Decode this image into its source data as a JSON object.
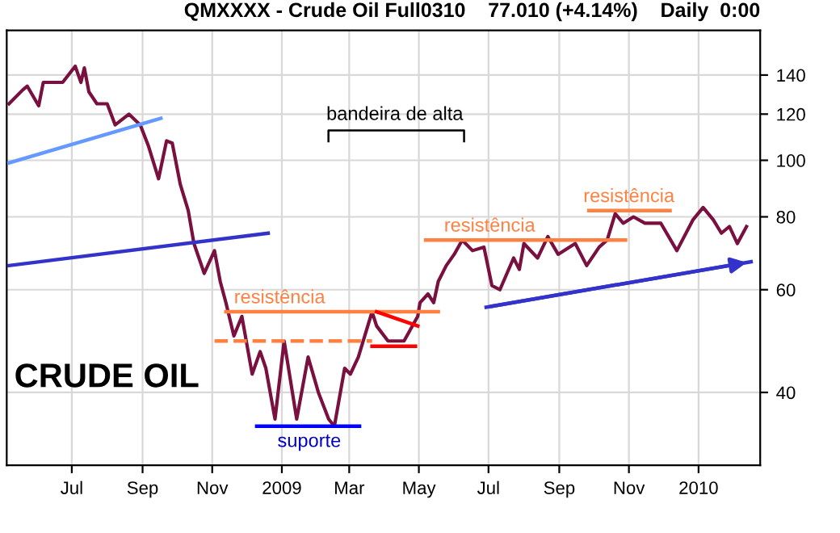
{
  "chart_data": {
    "type": "line",
    "title": "QMXXXX - Crude Oil Full0310    77.010 (+4.14%)    Daily  0:00",
    "xlim": [
      "2008-05-05",
      "2010-02-24"
    ],
    "ylim": [
      30,
      167
    ],
    "log": true,
    "xticks": [
      {
        "value": "2008-07-01",
        "label": "Jul"
      },
      {
        "value": "2008-09-01",
        "label": "Sep"
      },
      {
        "value": "2008-11-01",
        "label": "Nov"
      },
      {
        "value": "2009-01-01",
        "label": "2009"
      },
      {
        "value": "2009-03-01",
        "label": "Mar"
      },
      {
        "value": "2009-05-01",
        "label": "May"
      },
      {
        "value": "2009-07-01",
        "label": "Jul"
      },
      {
        "value": "2009-09-01",
        "label": "Sep"
      },
      {
        "value": "2009-11-01",
        "label": "Nov"
      },
      {
        "value": "2010-01-01",
        "label": "2010"
      }
    ],
    "yticks": [
      40,
      60,
      80,
      100,
      120,
      140
    ],
    "grid": true,
    "marker": "none",
    "line_style": "solid",
    "series": [
      {
        "color": "#7a1040",
        "x": [
          "2008-05-07",
          "2008-05-19",
          "2008-05-23",
          "2008-06-02",
          "2008-06-06",
          "2008-06-23",
          "2008-07-04",
          "2008-07-09",
          "2008-07-12",
          "2008-07-16",
          "2008-07-23",
          "2008-08-01",
          "2008-08-08",
          "2008-08-20",
          "2008-08-30",
          "2008-09-06",
          "2008-09-15",
          "2008-09-22",
          "2008-09-27",
          "2008-10-04",
          "2008-10-11",
          "2008-10-16",
          "2008-10-25",
          "2008-11-03",
          "2008-11-08",
          "2008-11-13",
          "2008-11-20",
          "2008-11-27",
          "2008-12-06",
          "2008-12-13",
          "2008-12-18",
          "2008-12-26",
          "2009-01-03",
          "2009-01-14",
          "2009-01-24",
          "2009-02-02",
          "2009-02-11",
          "2009-02-16",
          "2009-02-25",
          "2009-03-02",
          "2009-03-09",
          "2009-03-21",
          "2009-03-25",
          "2009-04-04",
          "2009-04-18",
          "2009-04-30",
          "2009-05-02",
          "2009-05-09",
          "2009-05-14",
          "2009-05-18",
          "2009-05-25",
          "2009-06-01",
          "2009-06-08",
          "2009-06-17",
          "2009-06-27",
          "2009-07-04",
          "2009-07-11",
          "2009-07-23",
          "2009-07-28",
          "2009-08-01",
          "2009-08-13",
          "2009-08-22",
          "2009-08-31",
          "2009-09-15",
          "2009-09-25",
          "2009-10-06",
          "2009-10-13",
          "2009-10-20",
          "2009-10-27",
          "2009-11-05",
          "2009-11-15",
          "2009-11-29",
          "2009-12-13",
          "2009-12-27",
          "2010-01-05",
          "2010-01-14",
          "2010-01-21",
          "2010-01-28",
          "2010-02-04",
          "2010-02-12"
        ],
        "values": [
          125,
          132,
          134,
          124,
          136,
          136,
          145,
          136,
          144,
          131,
          125,
          125,
          115,
          120,
          115,
          106,
          93,
          108,
          107,
          91,
          82,
          72,
          64,
          70,
          62,
          57,
          50,
          54,
          43,
          47,
          44,
          36,
          49,
          36,
          46,
          40,
          36,
          35,
          44,
          43,
          46,
          55,
          52,
          49,
          49,
          54,
          57,
          59,
          57,
          62,
          66,
          69,
          73,
          70,
          71,
          61,
          60,
          68,
          65,
          72,
          68,
          74,
          69,
          72,
          66,
          71,
          73,
          81,
          78,
          80,
          78,
          78,
          70,
          79,
          83,
          79,
          75,
          77,
          72,
          77
        ]
      },
      {
        "color": "#6699ff",
        "x": [
          "2008-05-07",
          "2008-09-17"
        ],
        "values": [
          99,
          118
        ]
      },
      {
        "color": "#3333cc",
        "x": [
          "2008-05-07",
          "2008-12-20"
        ],
        "values": [
          66,
          75
        ]
      },
      {
        "color": "#ff8040",
        "x": [
          "2008-11-13",
          "2009-05-18"
        ],
        "values": [
          55,
          55
        ]
      },
      {
        "color": "#ff8040",
        "line_style": "dashed",
        "x": [
          "2008-11-03",
          "2009-03-21"
        ],
        "values": [
          49,
          49
        ]
      },
      {
        "color": "#0000ff",
        "x": [
          "2008-12-10",
          "2009-03-10"
        ],
        "values": [
          35,
          35
        ]
      },
      {
        "color": "#ff0000",
        "x": [
          "2009-03-25",
          "2009-04-30"
        ],
        "values": [
          55,
          52
        ]
      },
      {
        "color": "#ff0000",
        "x": [
          "2009-03-21",
          "2009-04-28"
        ],
        "values": [
          48,
          48
        ]
      },
      {
        "color": "#ff8040",
        "x": [
          "2009-05-07",
          "2009-10-29"
        ],
        "values": [
          73,
          73
        ]
      },
      {
        "color": "#ff8040",
        "x": [
          "2009-09-27",
          "2009-12-07"
        ],
        "values": [
          82,
          82
        ]
      },
      {
        "color": "#3333cc",
        "x": [
          "2009-06-29",
          "2010-02-16"
        ],
        "values": [
          56,
          67
        ]
      }
    ],
    "annotations": [
      {
        "text": "resistência",
        "x": "2008-12-30",
        "y": 55
      },
      {
        "text": "suporte",
        "x": "2009-01-25",
        "y": 35
      },
      {
        "text": "resistência",
        "x": "2009-07-02",
        "y": 73
      },
      {
        "text": "resistência",
        "x": "2009-11-01",
        "y": 82
      },
      "bandeira de alta",
      "CRUDE OIL"
    ]
  }
}
